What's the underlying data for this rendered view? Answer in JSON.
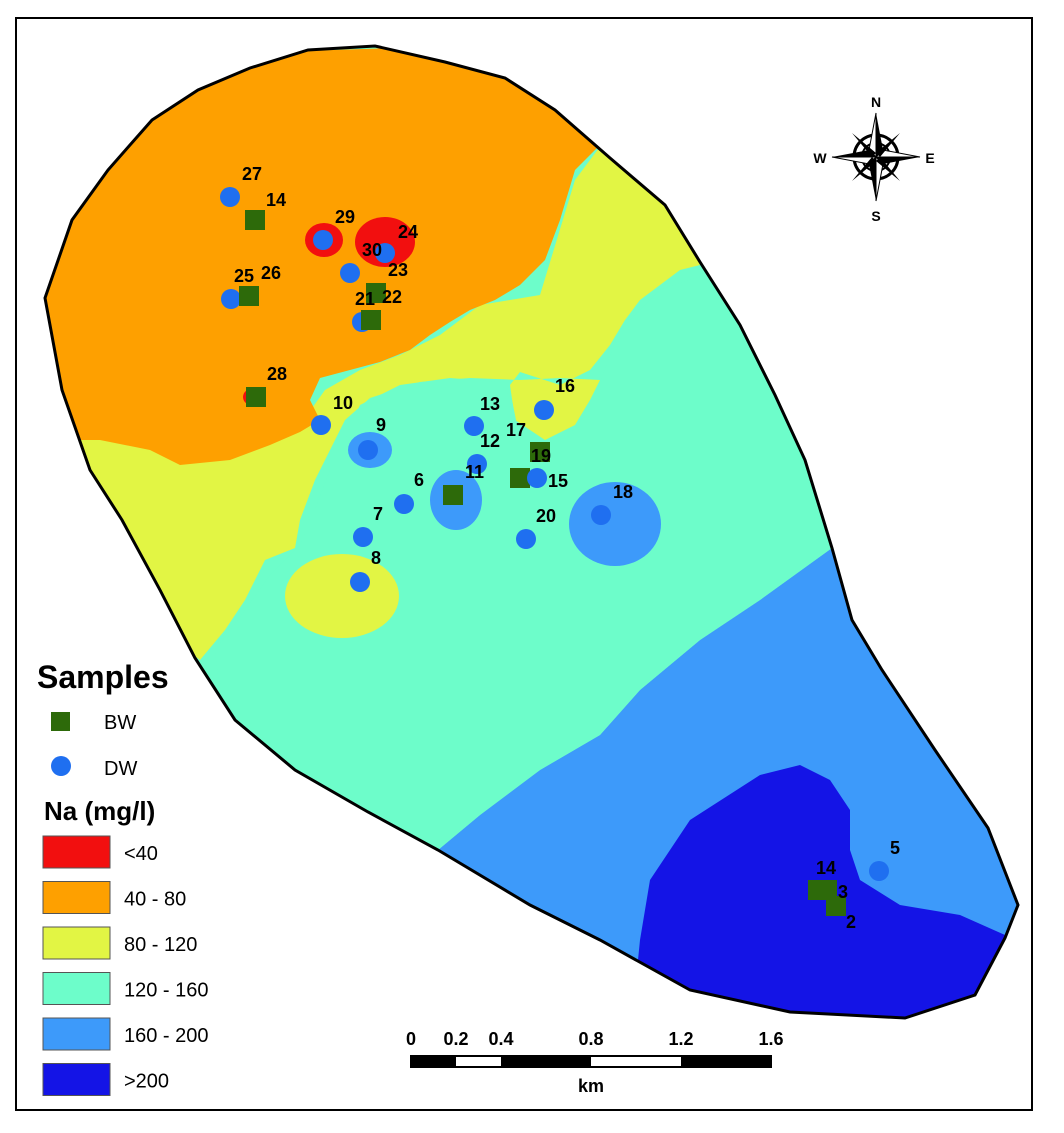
{
  "legend": {
    "samples_title": "Samples",
    "sample_types": [
      {
        "label": "BW",
        "shape": "square",
        "color": "#2d6a0a"
      },
      {
        "label": "DW",
        "shape": "circle",
        "color": "#1f6ff0"
      }
    ],
    "na_title": "Na (mg/l)",
    "classes": [
      {
        "label": "<40",
        "color": "#f20f0f"
      },
      {
        "label": "40 - 80",
        "color": "#fea000"
      },
      {
        "label": "80 - 120",
        "color": "#e2f544"
      },
      {
        "label": "120 - 160",
        "color": "#6dfdca"
      },
      {
        "label": "160 - 200",
        "color": "#3d9afa"
      },
      {
        "label": ">200",
        "color": "#1414e6"
      }
    ]
  },
  "scale_bar": {
    "ticks": [
      "0",
      "0.2",
      "0.4",
      "0.8",
      "1.2",
      "1.6"
    ],
    "unit": "km"
  },
  "compass": {
    "n": "N",
    "s": "S",
    "e": "E",
    "w": "W"
  },
  "sample_labels": [
    "27",
    "14",
    "29",
    "24",
    "30",
    "23",
    "25",
    "26",
    "21",
    "22",
    "28",
    "10",
    "9",
    "13",
    "12",
    "17",
    "16",
    "19",
    "11",
    "15",
    "6",
    "7",
    "8",
    "18",
    "20",
    "5",
    "14",
    "3",
    "2"
  ]
}
